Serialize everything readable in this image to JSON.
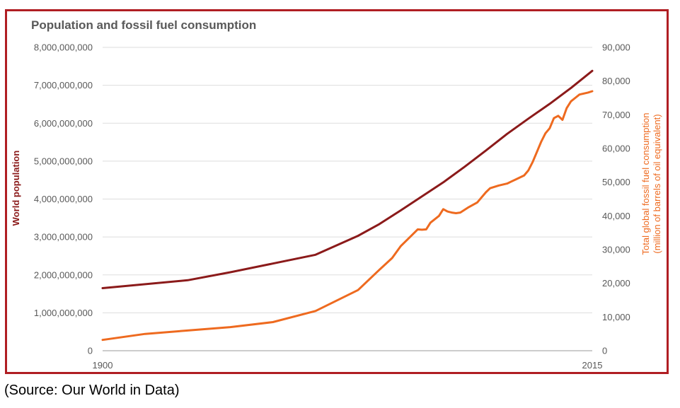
{
  "source_note": "(Source: Our World in Data)",
  "colors": {
    "population": "#8b1a1a",
    "fossil": "#ee6a1f",
    "frame": "#b01e23",
    "grid": "#dddddd",
    "text": "#595959"
  },
  "chart_data": {
    "type": "line",
    "title": "Population and fossil fuel consumption",
    "xlabel": "",
    "x_ticks": [
      "1900",
      "2015"
    ],
    "xlim": [
      1900,
      2015
    ],
    "y_left": {
      "label": "World population",
      "lim": [
        0,
        8000000000
      ],
      "ticks": [
        "0",
        "1,000,000,000",
        "2,000,000,000",
        "3,000,000,000",
        "4,000,000,000",
        "5,000,000,000",
        "6,000,000,000",
        "7,000,000,000",
        "8,000,000,000"
      ]
    },
    "y_right": {
      "label": "Total global fossil fuel consumption",
      "label2": "(million of barrels of oil equivalent)",
      "lim": [
        0,
        90000
      ],
      "ticks": [
        "0",
        "10,000",
        "20,000",
        "30,000",
        "40,000",
        "50,000",
        "60,000",
        "70,000",
        "80,000",
        "90,000"
      ]
    },
    "grid": true,
    "series": [
      {
        "axis": "left",
        "x": [
          1900,
          1920,
          1930,
          1940,
          1950,
          1960,
          1965,
          1970,
          1975,
          1980,
          1985,
          1990,
          1995,
          2000,
          2005,
          2010,
          2015
        ],
        "values": [
          1650000000,
          1860000000,
          2070000000,
          2300000000,
          2530000000,
          3030000000,
          3340000000,
          3700000000,
          4070000000,
          4440000000,
          4850000000,
          5280000000,
          5720000000,
          6120000000,
          6510000000,
          6930000000,
          7380000000
        ]
      },
      {
        "axis": "right",
        "x": [
          1900,
          1910,
          1920,
          1930,
          1940,
          1950,
          1960,
          1965,
          1968,
          1970,
          1972,
          1974,
          1975,
          1976,
          1977,
          1979,
          1980,
          1981,
          1982,
          1983,
          1984,
          1986,
          1988,
          1990,
          1991,
          1993,
          1995,
          1996,
          1997,
          1999,
          2000,
          2001,
          2002,
          2003,
          2004,
          2005,
          2006,
          2007,
          2008,
          2009,
          2010,
          2011,
          2012,
          2014,
          2015
        ],
        "values": [
          3200,
          5000,
          6000,
          7000,
          8500,
          11800,
          18000,
          24000,
          27500,
          31000,
          33500,
          36000,
          35900,
          36000,
          38000,
          40000,
          42000,
          41300,
          41000,
          40800,
          41000,
          42600,
          44000,
          47000,
          48200,
          49000,
          49600,
          50200,
          50800,
          52000,
          53500,
          56000,
          59000,
          62000,
          64500,
          66000,
          69000,
          69700,
          68500,
          72000,
          74000,
          75000,
          76000,
          76600,
          77000
        ]
      }
    ]
  }
}
